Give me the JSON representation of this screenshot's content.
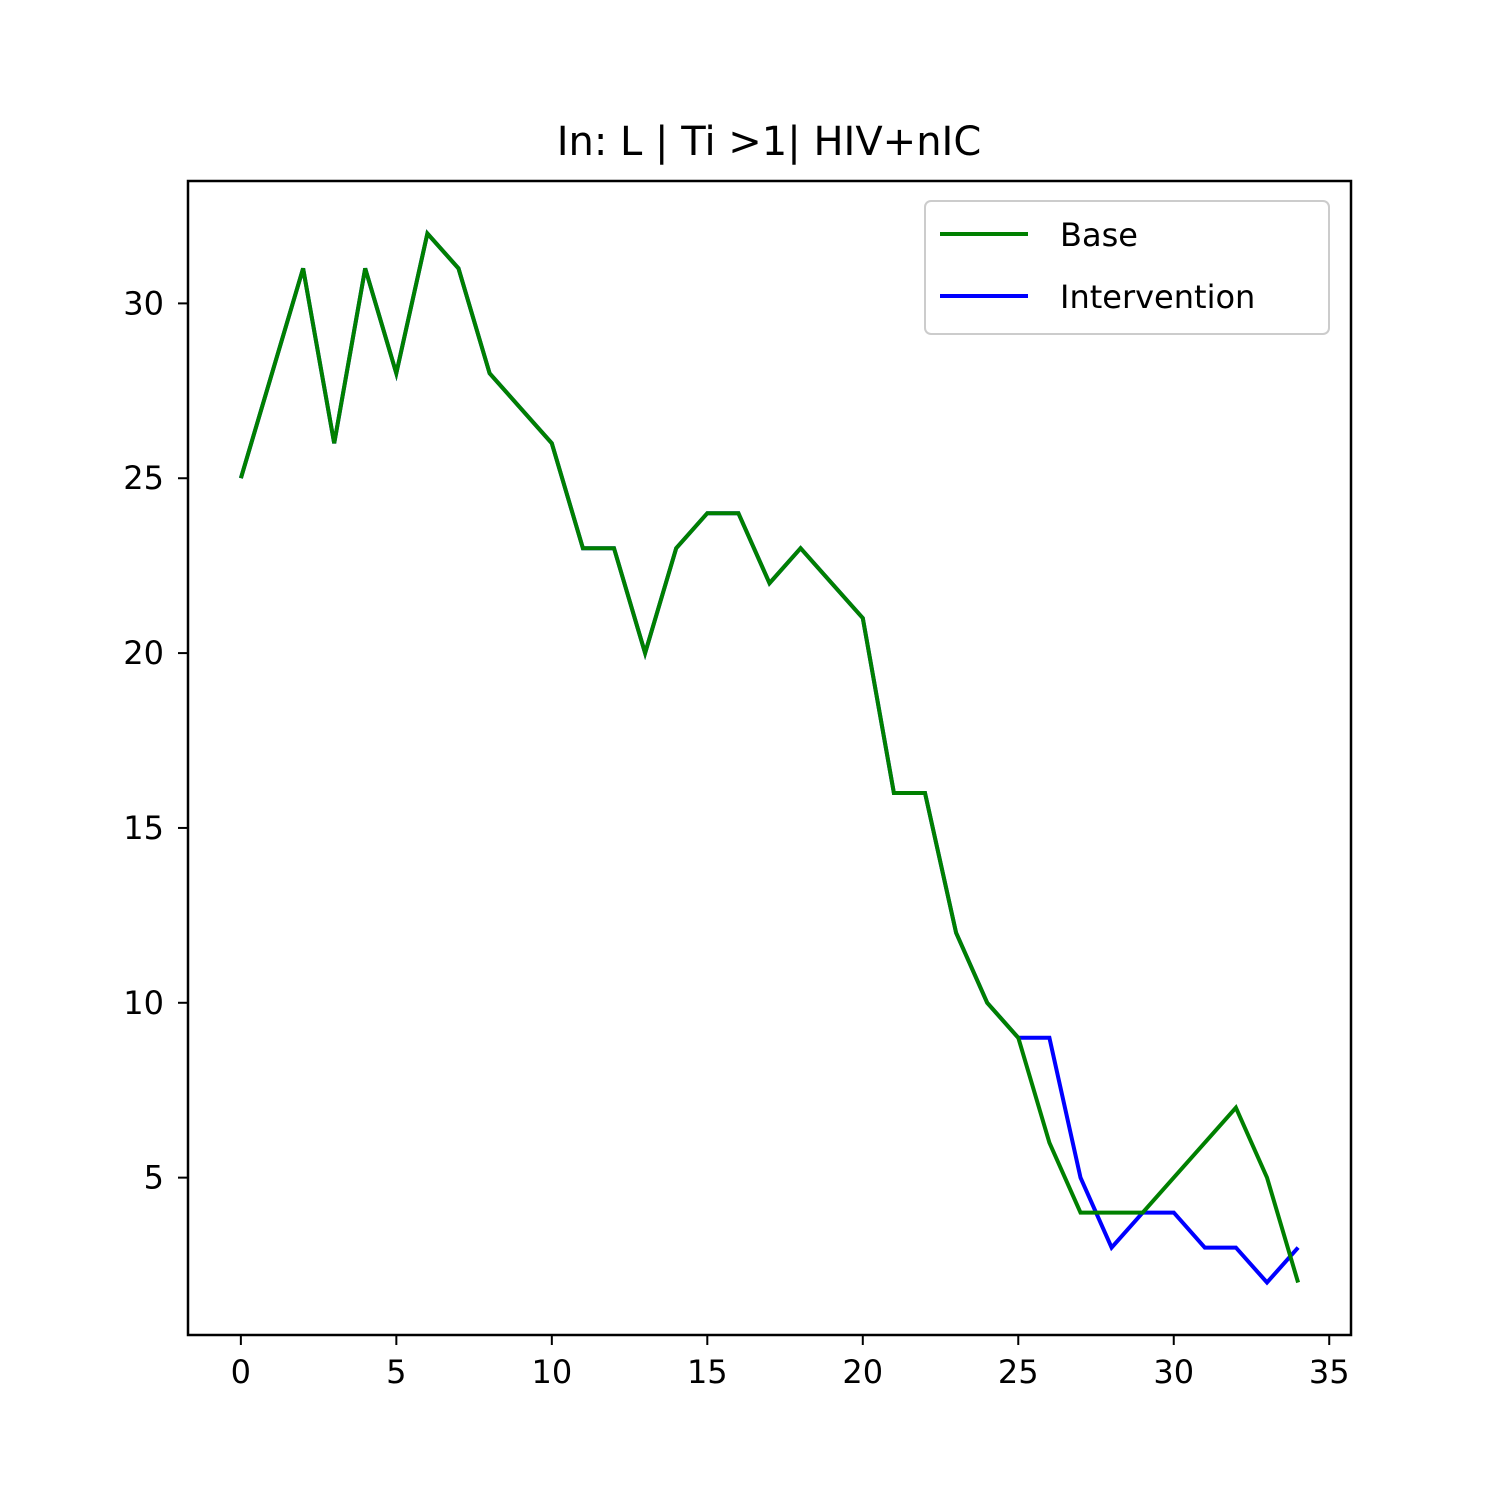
{
  "chart_data": {
    "type": "line",
    "title": "In: L | Ti >1| HIV+nIC",
    "xlabel": "",
    "ylabel": "",
    "xlim": [
      -1.7,
      35.7
    ],
    "ylim": [
      0.5,
      33.5
    ],
    "xticks": [
      0,
      5,
      10,
      15,
      20,
      25,
      30,
      35
    ],
    "yticks": [
      5,
      10,
      15,
      20,
      25,
      30
    ],
    "grid": false,
    "legend": "top-right",
    "series": [
      {
        "name": "Base",
        "color": "#008000",
        "x": [
          0,
          1,
          2,
          3,
          4,
          5,
          6,
          7,
          8,
          9,
          10,
          11,
          12,
          13,
          14,
          15,
          16,
          17,
          18,
          19,
          20,
          21,
          22,
          23,
          24,
          25,
          26,
          27,
          28,
          29,
          30,
          31,
          32,
          33,
          34
        ],
        "values": [
          25,
          28,
          31,
          26,
          31,
          28,
          32,
          31,
          28,
          27,
          26,
          23,
          23,
          20,
          23,
          24,
          24,
          22,
          23,
          22,
          21,
          16,
          16,
          12,
          10,
          9,
          6,
          4,
          4,
          4,
          5,
          6,
          7,
          5,
          2
        ]
      },
      {
        "name": "Intervention",
        "color": "#0000ff",
        "x": [
          0,
          1,
          2,
          3,
          4,
          5,
          6,
          7,
          8,
          9,
          10,
          11,
          12,
          13,
          14,
          15,
          16,
          17,
          18,
          19,
          20,
          21,
          22,
          23,
          24,
          25,
          26,
          27,
          28,
          29,
          30,
          31,
          32,
          33,
          34
        ],
        "values": [
          25,
          28,
          31,
          26,
          31,
          28,
          32,
          31,
          28,
          27,
          26,
          23,
          23,
          20,
          23,
          24,
          24,
          22,
          23,
          22,
          21,
          16,
          16,
          12,
          10,
          9,
          9,
          5,
          3,
          4,
          4,
          3,
          3,
          2,
          3
        ]
      }
    ]
  }
}
